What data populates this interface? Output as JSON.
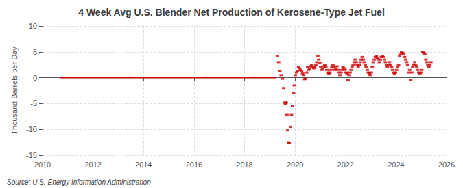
{
  "chart_data": {
    "type": "scatter",
    "title": "4 Week Avg U.S. Blender Net Production of Kerosene-Type Jet Fuel",
    "ylabel": "Thousand Barrels per Day",
    "annotation": "Source: U.S. Energy Information Administration",
    "xlim": [
      2010,
      2026
    ],
    "ylim": [
      -15,
      10
    ],
    "xticks": [
      2010,
      2012,
      2014,
      2016,
      2018,
      2020,
      2022,
      2024,
      2026
    ],
    "yticks": [
      -15,
      -10,
      -5,
      0,
      5,
      10
    ],
    "grid": true,
    "series": [
      {
        "type": "line",
        "color": "#cc0000",
        "line_style": "solid",
        "x": [
          2010.7,
          2019.25
        ],
        "values": [
          0,
          0
        ]
      },
      {
        "type": "scatter",
        "color": "#cc0000",
        "marker": "square",
        "x": [
          2019.3,
          2019.35,
          2019.4,
          2019.45,
          2019.5,
          2019.55,
          2019.6,
          2019.62,
          2019.65,
          2019.68,
          2019.71,
          2019.74,
          2019.77,
          2019.82,
          2019.86,
          2019.9,
          2019.94,
          2019.97,
          2020.01,
          2020.06,
          2020.1,
          2020.14,
          2020.18,
          2020.22,
          2020.26,
          2020.3,
          2020.34,
          2020.38,
          2020.42,
          2020.46,
          2020.5,
          2020.54,
          2020.58,
          2020.62,
          2020.66,
          2020.7,
          2020.74,
          2020.78,
          2020.82,
          2020.86,
          2020.9,
          2020.94,
          2020.98,
          2021.02,
          2021.06,
          2021.1,
          2021.14,
          2021.18,
          2021.22,
          2021.26,
          2021.3,
          2021.34,
          2021.38,
          2021.42,
          2021.46,
          2021.5,
          2021.54,
          2021.58,
          2021.62,
          2021.66,
          2021.7,
          2021.74,
          2021.78,
          2021.82,
          2021.86,
          2021.9,
          2021.94,
          2021.98,
          2022.02,
          2022.06,
          2022.1,
          2022.14,
          2022.18,
          2022.22,
          2022.26,
          2022.3,
          2022.34,
          2022.38,
          2022.42,
          2022.46,
          2022.5,
          2022.54,
          2022.58,
          2022.62,
          2022.66,
          2022.7,
          2022.74,
          2022.78,
          2022.82,
          2022.86,
          2022.9,
          2022.94,
          2022.98,
          2023.02,
          2023.06,
          2023.1,
          2023.14,
          2023.18,
          2023.22,
          2023.26,
          2023.3,
          2023.34,
          2023.38,
          2023.42,
          2023.46,
          2023.5,
          2023.54,
          2023.58,
          2023.62,
          2023.66,
          2023.7,
          2023.74,
          2023.78,
          2023.82,
          2023.86,
          2023.9,
          2023.94,
          2023.98,
          2024.02,
          2024.06,
          2024.1,
          2024.14,
          2024.18,
          2024.22,
          2024.26,
          2024.3,
          2024.34,
          2024.38,
          2024.42,
          2024.46,
          2024.5,
          2024.54,
          2024.58,
          2024.62,
          2024.66,
          2024.7,
          2024.74,
          2024.78,
          2024.82,
          2024.86,
          2024.9,
          2024.94,
          2024.98,
          2025.02,
          2025.06,
          2025.1,
          2025.14,
          2025.18,
          2025.22,
          2025.26,
          2025.3,
          2025.34,
          2025.38
        ],
        "values": [
          4.2,
          3.0,
          1.2,
          0.5,
          -0.2,
          -2.0,
          -4.8,
          -5.1,
          -4.8,
          -7.2,
          -10.2,
          -12.5,
          -12.6,
          -9.5,
          -7.2,
          -5.5,
          -3.0,
          -1.5,
          0.5,
          1.0,
          1.2,
          2.0,
          1.8,
          1.5,
          1.2,
          0.8,
          0.5,
          -0.3,
          -0.2,
          1.0,
          2.0,
          1.5,
          1.8,
          2.2,
          2.5,
          2.0,
          1.8,
          2.0,
          2.5,
          3.0,
          4.2,
          3.5,
          2.8,
          2.0,
          1.5,
          1.8,
          2.2,
          2.5,
          2.0,
          1.5,
          1.0,
          0.8,
          1.0,
          1.5,
          2.0,
          2.5,
          2.0,
          1.5,
          1.8,
          2.2,
          1.5,
          1.0,
          0.5,
          1.0,
          1.5,
          2.0,
          1.8,
          1.5,
          1.0,
          0.8,
          -0.5,
          0.5,
          1.0,
          1.5,
          2.0,
          2.5,
          3.0,
          3.5,
          3.0,
          2.5,
          2.0,
          2.5,
          3.0,
          3.5,
          4.0,
          3.5,
          3.0,
          2.5,
          2.0,
          1.5,
          1.0,
          0.8,
          0.5,
          1.0,
          2.0,
          3.0,
          3.5,
          4.0,
          4.2,
          3.8,
          3.5,
          3.0,
          3.5,
          4.0,
          4.2,
          4.0,
          3.5,
          3.0,
          2.5,
          2.0,
          2.5,
          3.0,
          2.5,
          2.0,
          1.5,
          1.0,
          0.8,
          1.0,
          1.5,
          2.0,
          2.5,
          4.2,
          4.5,
          5.0,
          4.8,
          4.5,
          4.0,
          3.5,
          3.0,
          2.5,
          1.0,
          1.5,
          -0.5,
          1.0,
          2.0,
          2.5,
          3.0,
          2.5,
          2.0,
          1.5,
          1.0,
          0.8,
          1.0,
          1.5,
          5.0,
          4.8,
          4.5,
          3.5,
          3.0,
          2.5,
          2.0,
          2.5,
          3.0
        ]
      }
    ]
  }
}
